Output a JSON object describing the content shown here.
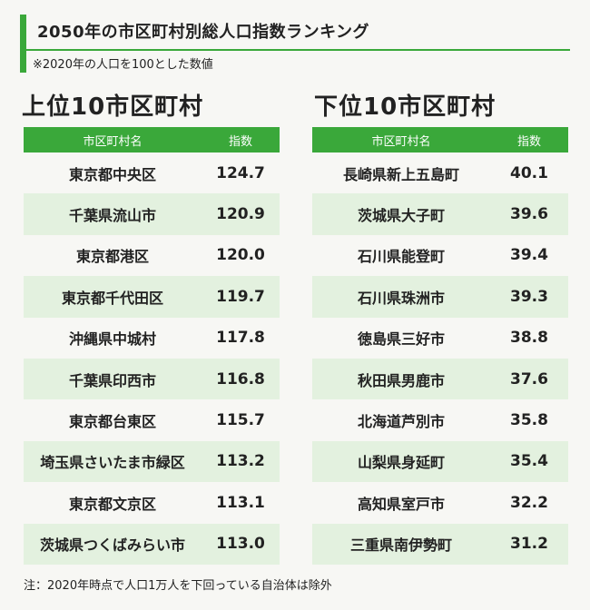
{
  "title": "2050年の市区町村別総人口指数ランキング",
  "subtitle": "※2020年の人口を100とした数値",
  "top": {
    "heading": "上位10市区町村",
    "col_name": "市区町村名",
    "col_index": "指数",
    "rows": [
      {
        "name": "東京都中央区",
        "value": "124.7"
      },
      {
        "name": "千葉県流山市",
        "value": "120.9"
      },
      {
        "name": "東京都港区",
        "value": "120.0"
      },
      {
        "name": "東京都千代田区",
        "value": "119.7"
      },
      {
        "name": "沖縄県中城村",
        "value": "117.8"
      },
      {
        "name": "千葉県印西市",
        "value": "116.8"
      },
      {
        "name": "東京都台東区",
        "value": "115.7"
      },
      {
        "name": "埼玉県さいたま市緑区",
        "value": "113.2"
      },
      {
        "name": "東京都文京区",
        "value": "113.1"
      },
      {
        "name": "茨城県つくばみらい市",
        "value": "113.0"
      }
    ]
  },
  "bottom": {
    "heading": "下位10市区町村",
    "col_name": "市区町村名",
    "col_index": "指数",
    "rows": [
      {
        "name": "長崎県新上五島町",
        "value": "40.1"
      },
      {
        "name": "茨城県大子町",
        "value": "39.6"
      },
      {
        "name": "石川県能登町",
        "value": "39.4"
      },
      {
        "name": "石川県珠洲市",
        "value": "39.3"
      },
      {
        "name": "徳島県三好市",
        "value": "38.8"
      },
      {
        "name": "秋田県男鹿市",
        "value": "37.6"
      },
      {
        "name": "北海道芦別市",
        "value": "35.8"
      },
      {
        "name": "山梨県身延町",
        "value": "35.4"
      },
      {
        "name": "高知県室戸市",
        "value": "32.2"
      },
      {
        "name": "三重県南伊勢町",
        "value": "31.2"
      }
    ]
  },
  "footnote": "注：2020年時点で人口1万人を下回っている自治体は除外",
  "colors": {
    "accent": "#3aa83a",
    "row_alt": "#e3f1df",
    "background": "#f7f7f4"
  }
}
